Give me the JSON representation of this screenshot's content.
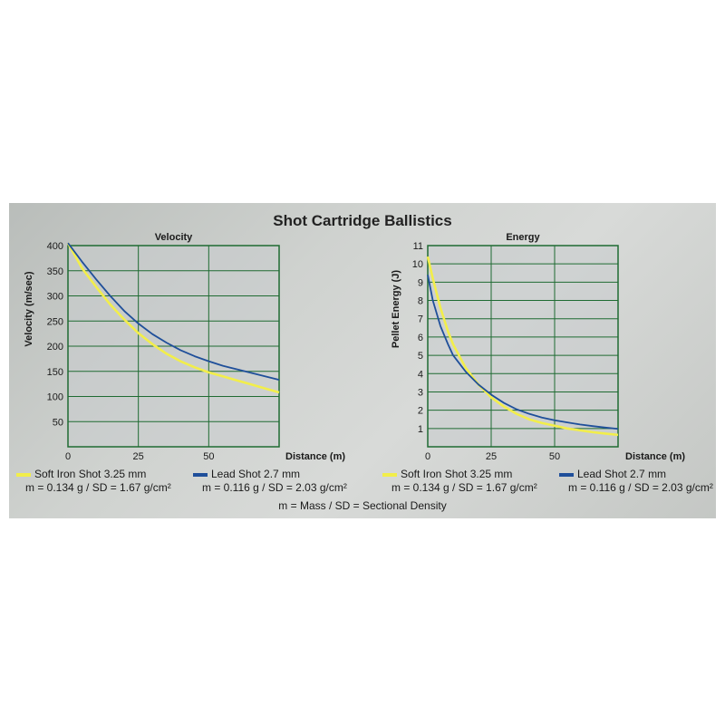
{
  "header": {
    "title": "Shot Cartridge Ballistics"
  },
  "footnote": "m = Mass / SD = Sectional Density",
  "legend": [
    {
      "name": "Soft Iron Shot 3.25 mm",
      "sub": "m = 0.134 g / SD = 1.67 g/cm²",
      "color": "#f2ee4a"
    },
    {
      "name": "Lead Shot 2.7 mm",
      "sub": "m = 0.116 g / SD = 2.03 g/cm²",
      "color": "#1f4f9a"
    }
  ],
  "chart_data": [
    {
      "type": "line",
      "title": "Velocity",
      "xlabel": "Distance (m)",
      "ylabel": "Velocity (m/sec)",
      "xlim": [
        0,
        75
      ],
      "ylim": [
        0,
        400
      ],
      "xticks": [
        0,
        25,
        50
      ],
      "yticks": [
        50,
        100,
        150,
        200,
        250,
        300,
        350,
        400
      ],
      "grid": true,
      "series": [
        {
          "name": "Soft Iron Shot 3.25 mm",
          "color": "#f2ee4a",
          "x": [
            0,
            5,
            10,
            15,
            20,
            25,
            30,
            35,
            40,
            45,
            50,
            55,
            60,
            65,
            70,
            75
          ],
          "y": [
            405,
            355,
            318,
            283,
            253,
            226,
            204,
            185,
            170,
            158,
            148,
            140,
            132,
            124,
            116,
            108
          ]
        },
        {
          "name": "Lead Shot 2.7 mm",
          "color": "#1f4f9a",
          "x": [
            0,
            5,
            10,
            15,
            20,
            25,
            30,
            35,
            40,
            45,
            50,
            55,
            60,
            65,
            70,
            75
          ],
          "y": [
            405,
            368,
            333,
            300,
            270,
            245,
            224,
            207,
            192,
            180,
            170,
            161,
            154,
            147,
            140,
            133
          ]
        }
      ]
    },
    {
      "type": "line",
      "title": "Energy",
      "xlabel": "Distance (m)",
      "ylabel": "Pellet Energy (J)",
      "xlim": [
        0,
        75
      ],
      "ylim": [
        0,
        11
      ],
      "xticks": [
        0,
        25,
        50
      ],
      "yticks": [
        1,
        2,
        3,
        4,
        5,
        6,
        7,
        8,
        9,
        10,
        11
      ],
      "grid": true,
      "series": [
        {
          "name": "Soft Iron Shot 3.25 mm",
          "color": "#f2ee4a",
          "x": [
            0,
            2,
            5,
            8,
            10,
            15,
            20,
            25,
            30,
            35,
            40,
            45,
            50,
            55,
            60,
            65,
            70,
            75
          ],
          "y": [
            10.4,
            9.2,
            7.6,
            6.3,
            5.6,
            4.3,
            3.4,
            2.7,
            2.2,
            1.8,
            1.5,
            1.3,
            1.15,
            1.0,
            0.9,
            0.8,
            0.72,
            0.65
          ]
        },
        {
          "name": "Lead Shot 2.7 mm",
          "color": "#1f4f9a",
          "x": [
            0,
            2,
            5,
            8,
            10,
            15,
            20,
            25,
            30,
            35,
            40,
            45,
            50,
            55,
            60,
            65,
            70,
            75
          ],
          "y": [
            9.4,
            8.0,
            6.6,
            5.6,
            5.0,
            4.1,
            3.4,
            2.85,
            2.4,
            2.05,
            1.8,
            1.6,
            1.45,
            1.33,
            1.22,
            1.13,
            1.05,
            0.98
          ]
        }
      ]
    }
  ]
}
